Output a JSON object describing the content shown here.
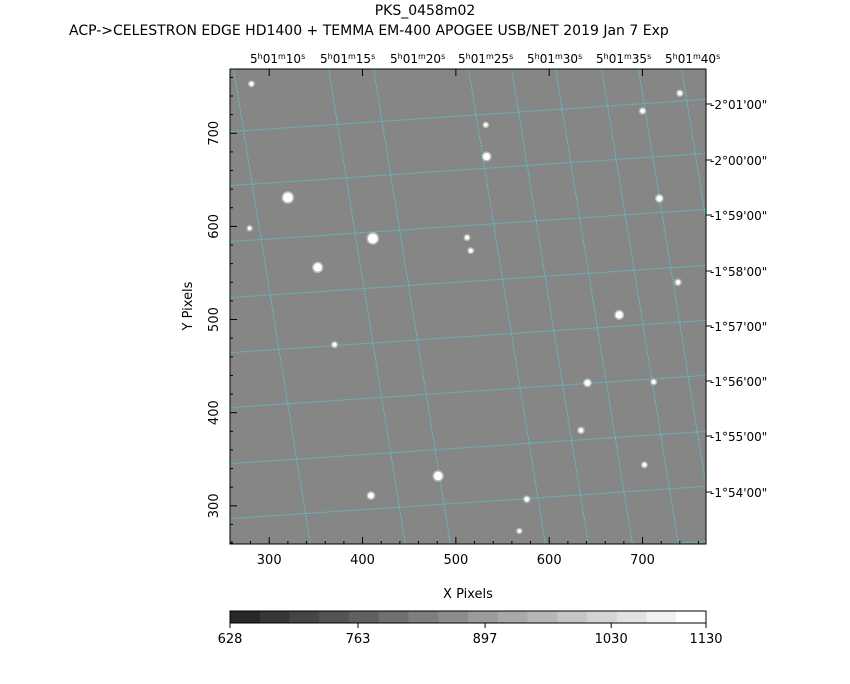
{
  "chart_data": {
    "type": "image",
    "title": "PKS_0458m02",
    "subtitle": "ACP->CELESTRON EDGE HD1400 + TEMMA EM-400 APOGEE USB/NET   2019 Jan  7    Exp",
    "xlabel": "X Pixels",
    "ylabel": "Y Pixels",
    "xlim": [
      258,
      768
    ],
    "ylim": [
      259,
      769
    ],
    "x_ticks": [
      300,
      400,
      500,
      600,
      700
    ],
    "y_ticks": [
      300,
      400,
      500,
      600,
      700
    ],
    "ra_labels": [
      {
        "h": "5",
        "m": "01",
        "s": "10"
      },
      {
        "h": "5",
        "m": "01",
        "s": "15"
      },
      {
        "h": "5",
        "m": "01",
        "s": "20"
      },
      {
        "h": "5",
        "m": "01",
        "s": "25"
      },
      {
        "h": "5",
        "m": "01",
        "s": "30"
      },
      {
        "h": "5",
        "m": "01",
        "s": "35"
      },
      {
        "h": "5",
        "m": "01",
        "s": "40"
      }
    ],
    "dec_labels": [
      "-2°01'00\"",
      "-2°00'00\"",
      "-1°59'00\"",
      "-1°58'00\"",
      "-1°57'00\"",
      "-1°56'00\"",
      "-1°55'00\"",
      "-1°54'00\""
    ],
    "grid": true,
    "grid_color": "#55c8d2",
    "colorbar": {
      "ticks": [
        "628",
        "763",
        "897",
        "1030",
        "1130"
      ],
      "range": [
        628,
        1130
      ]
    },
    "stars": [
      {
        "x": 320,
        "y": 631,
        "mag": 3
      },
      {
        "x": 411,
        "y": 587,
        "mag": 3
      },
      {
        "x": 352,
        "y": 556,
        "mag": 2.5
      },
      {
        "x": 533,
        "y": 675,
        "mag": 2
      },
      {
        "x": 718,
        "y": 630,
        "mag": 1.5
      },
      {
        "x": 675,
        "y": 505,
        "mag": 2
      },
      {
        "x": 641,
        "y": 432,
        "mag": 1.5
      },
      {
        "x": 481,
        "y": 332,
        "mag": 2.5
      },
      {
        "x": 409,
        "y": 311,
        "mag": 1.5
      },
      {
        "x": 576,
        "y": 307,
        "mag": 1
      },
      {
        "x": 700,
        "y": 724,
        "mag": 1
      },
      {
        "x": 740,
        "y": 743,
        "mag": 1
      },
      {
        "x": 738,
        "y": 540,
        "mag": 1
      },
      {
        "x": 512,
        "y": 588,
        "mag": 0.8
      },
      {
        "x": 516,
        "y": 574,
        "mag": 0.8
      },
      {
        "x": 634,
        "y": 381,
        "mag": 1
      },
      {
        "x": 712,
        "y": 433,
        "mag": 0.8
      },
      {
        "x": 702,
        "y": 344,
        "mag": 0.8
      },
      {
        "x": 532,
        "y": 709,
        "mag": 0.7
      },
      {
        "x": 370,
        "y": 473,
        "mag": 0.8
      },
      {
        "x": 281,
        "y": 753,
        "mag": 0.8
      },
      {
        "x": 279,
        "y": 598,
        "mag": 0.6
      },
      {
        "x": 568,
        "y": 273,
        "mag": 0.6
      }
    ]
  }
}
